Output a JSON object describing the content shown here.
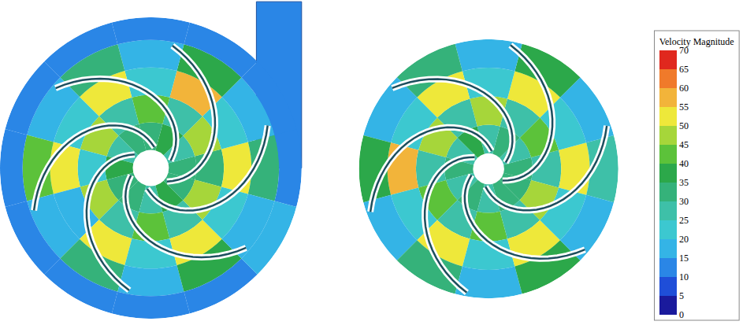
{
  "chart_data": {
    "type": "polar_field",
    "color_bar": {
      "title": "Velocity Magnitude",
      "range": [
        0,
        70
      ],
      "ticks": [
        0,
        5,
        10,
        15,
        20,
        25,
        30,
        35,
        40,
        45,
        50,
        55,
        60,
        65,
        70
      ]
    },
    "panels": [
      {
        "impeller_cells": [
          [
            32,
            28,
            35,
            30,
            34,
            28,
            36,
            30,
            33,
            27,
            35,
            30
          ],
          [
            30,
            46,
            25,
            44,
            28,
            45,
            24,
            47,
            26,
            43,
            27,
            45
          ],
          [
            52,
            22,
            55,
            20,
            53,
            21,
            54,
            19,
            52,
            22,
            50,
            21
          ],
          [
            30,
            17,
            38,
            16,
            34,
            18,
            40,
            15,
            33,
            17,
            36,
            16
          ]
        ],
        "volute_cells": [
          14,
          12,
          11,
          10,
          10,
          11,
          12,
          12,
          13,
          13,
          14,
          15
        ],
        "outlet_value": 12
      },
      {
        "impeller_cells": [
          [
            30,
            27,
            33,
            29,
            35,
            28,
            34,
            29,
            31,
            28,
            33,
            30
          ],
          [
            28,
            44,
            26,
            45,
            27,
            46,
            25,
            44,
            27,
            42,
            26,
            46
          ],
          [
            50,
            21,
            54,
            20,
            52,
            22,
            55,
            20,
            51,
            21,
            53,
            20
          ],
          [
            28,
            18,
            36,
            17,
            33,
            17,
            38,
            16,
            32,
            18,
            35,
            17
          ]
        ]
      }
    ]
  }
}
